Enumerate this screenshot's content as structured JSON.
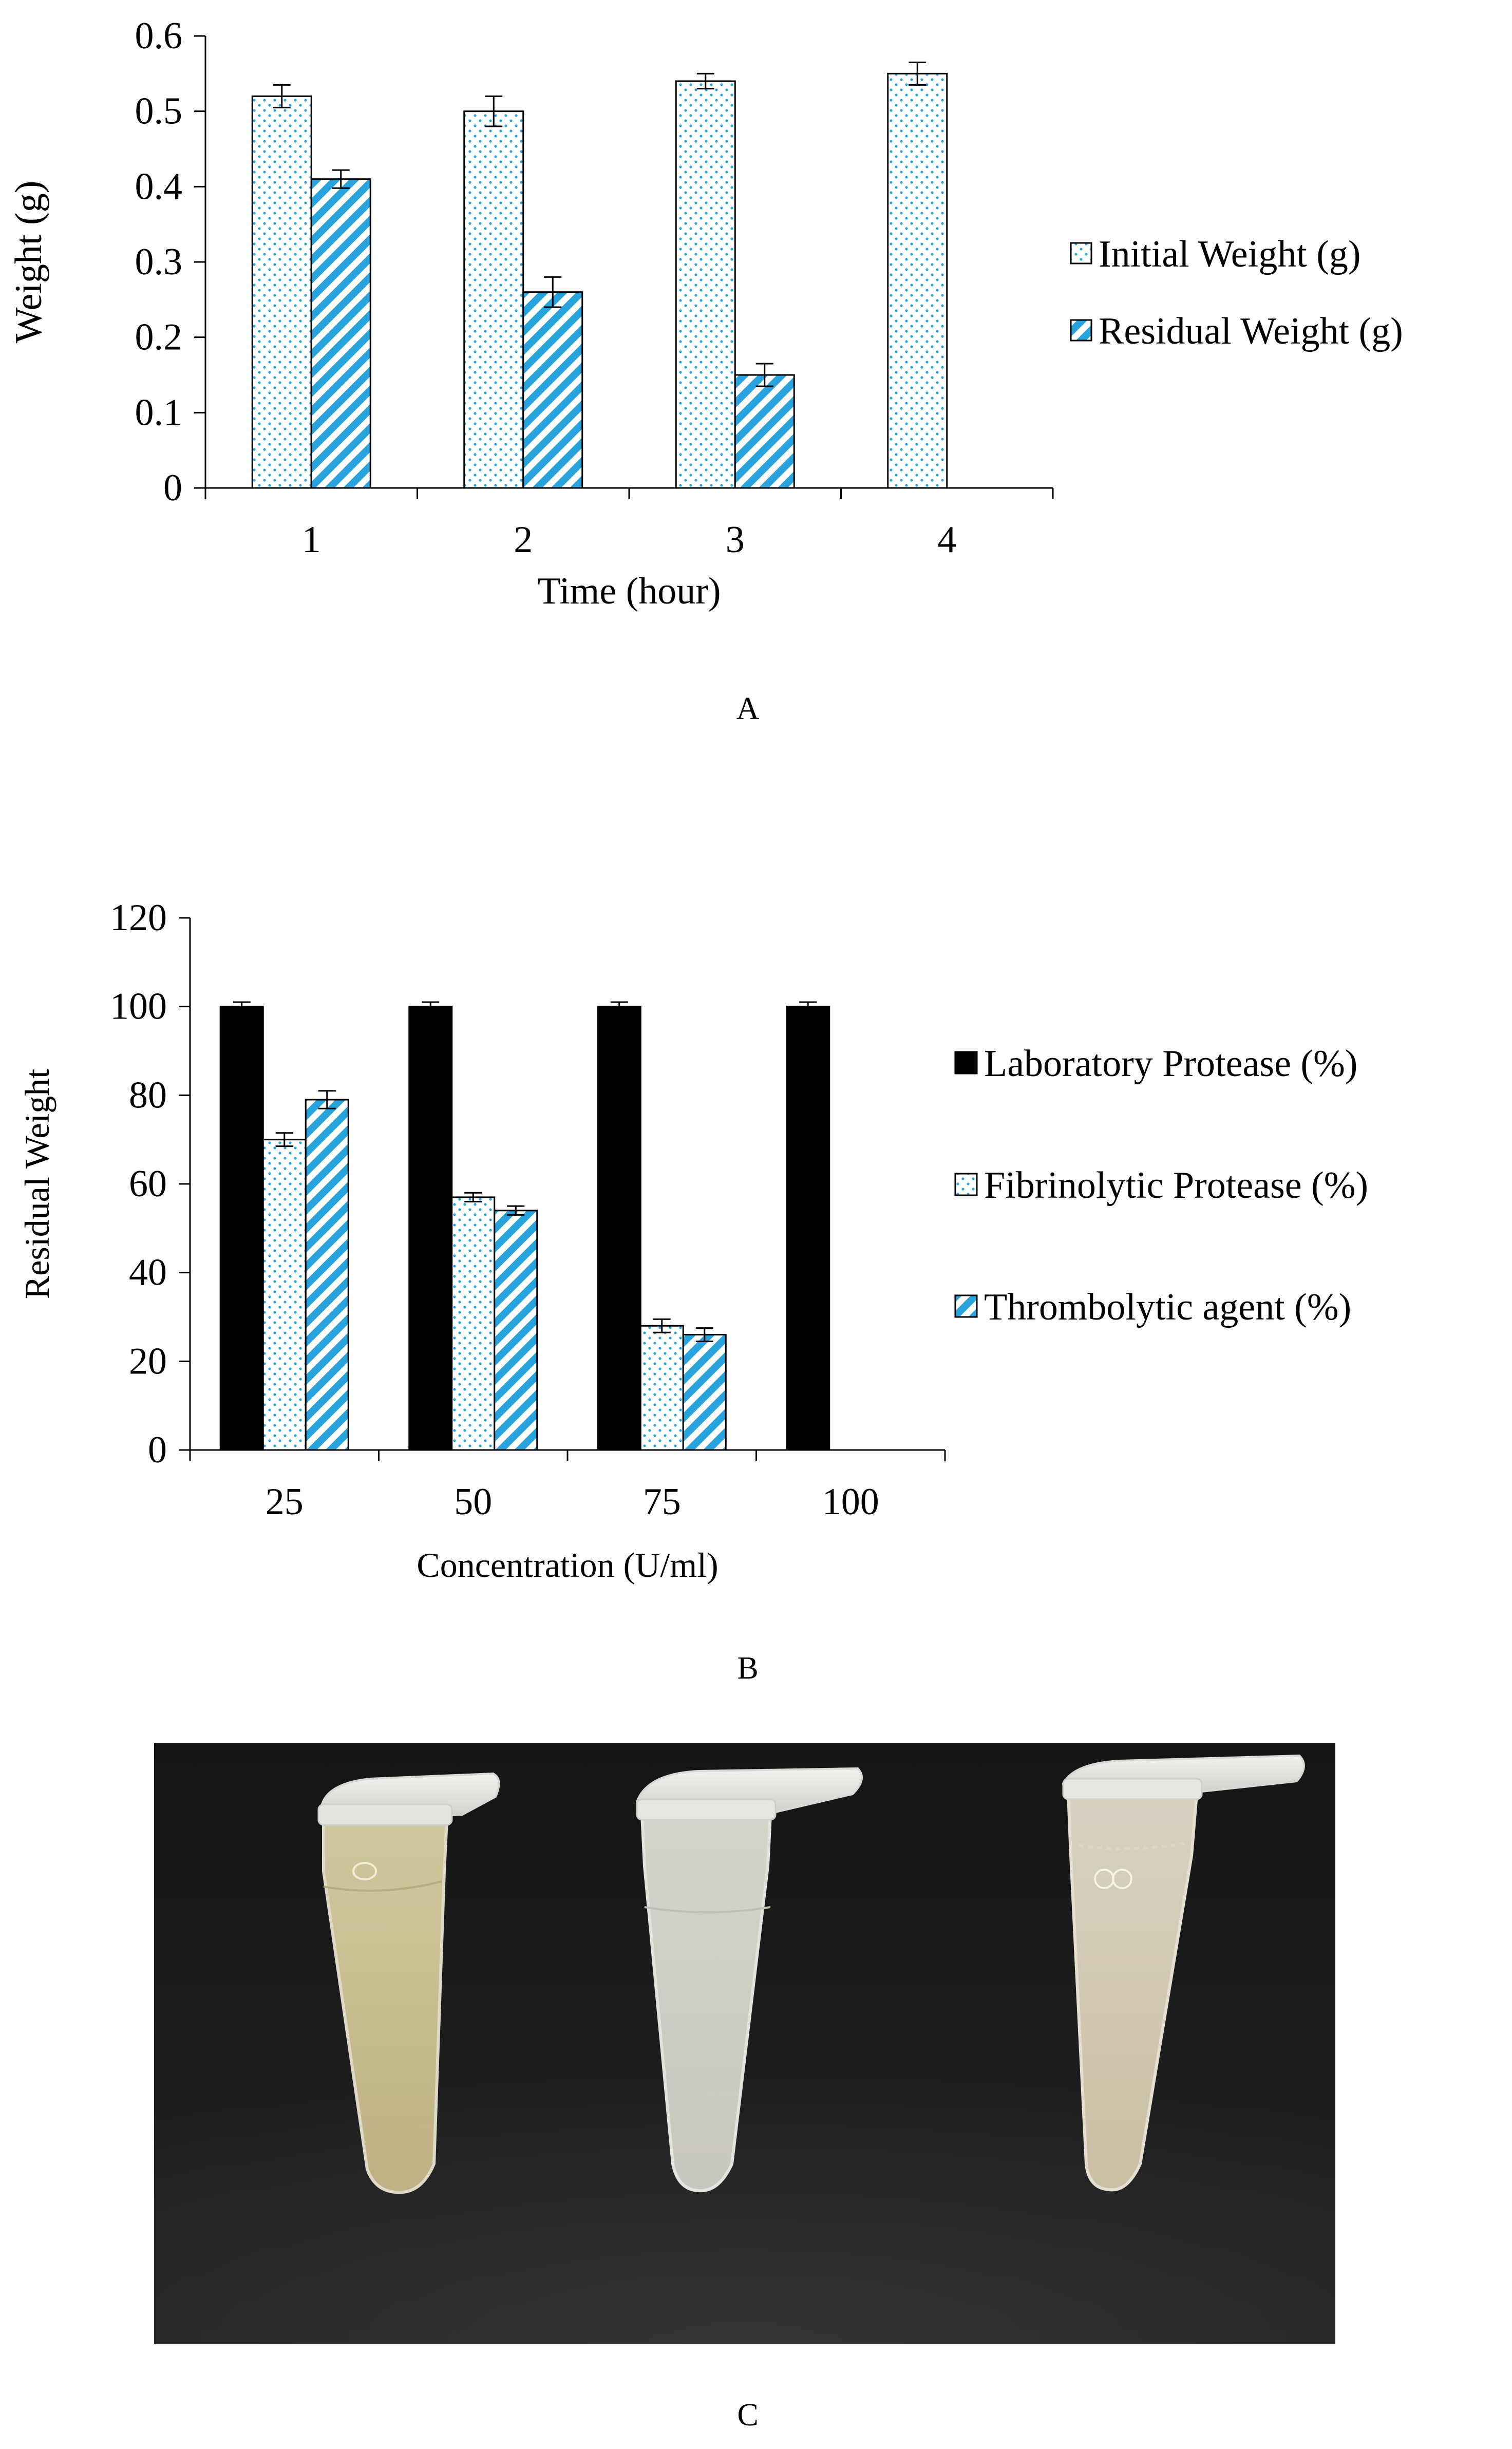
{
  "chart_data": [
    {
      "panel": "A",
      "type": "bar",
      "title": "",
      "panel_label": "A",
      "xlabel": "Time (hour)",
      "ylabel": "Weight (g)",
      "categories": [
        "1",
        "2",
        "3",
        "4"
      ],
      "ylim": [
        0,
        0.6
      ],
      "yticks": [
        "0",
        "0.1",
        "0.2",
        "0.3",
        "0.4",
        "0.5",
        "0.6"
      ],
      "legend_position": "right",
      "series": [
        {
          "name": "Initial Weight (g)",
          "values": [
            0.52,
            0.5,
            0.54,
            0.55
          ],
          "errors": [
            0.015,
            0.02,
            0.01,
            0.015
          ],
          "pattern": "dots",
          "color": "#29a3dc"
        },
        {
          "name": "Residual Weight (g)",
          "values": [
            0.41,
            0.26,
            0.15,
            0
          ],
          "errors": [
            0.012,
            0.02,
            0.015,
            0
          ],
          "pattern": "diagonal",
          "color": "#29a3dc"
        }
      ]
    },
    {
      "panel": "B",
      "type": "bar",
      "title": "",
      "panel_label": "B",
      "xlabel": "Concentration (U/ml)",
      "ylabel": "Residual Weight",
      "categories": [
        "25",
        "50",
        "75",
        "100"
      ],
      "ylim": [
        0,
        120
      ],
      "yticks": [
        "0",
        "20",
        "40",
        "60",
        "80",
        "100",
        "120"
      ],
      "legend_position": "right",
      "series": [
        {
          "name": "Laboratory Protease (%)",
          "values": [
            100,
            100,
            100,
            100
          ],
          "errors": [
            1,
            1,
            1,
            1
          ],
          "pattern": "solid",
          "color": "#000000"
        },
        {
          "name": "Fibrinolytic Protease (%)",
          "values": [
            70,
            57,
            28,
            0
          ],
          "errors": [
            1.5,
            1,
            1.5,
            0
          ],
          "pattern": "dots",
          "color": "#29a3dc"
        },
        {
          "name": "Thrombolytic agent (%)",
          "values": [
            79,
            54,
            26,
            0
          ],
          "errors": [
            2,
            1,
            1.5,
            0
          ],
          "pattern": "diagonal",
          "color": "#29a3dc"
        }
      ]
    }
  ],
  "photo": {
    "panel_label": "C"
  }
}
